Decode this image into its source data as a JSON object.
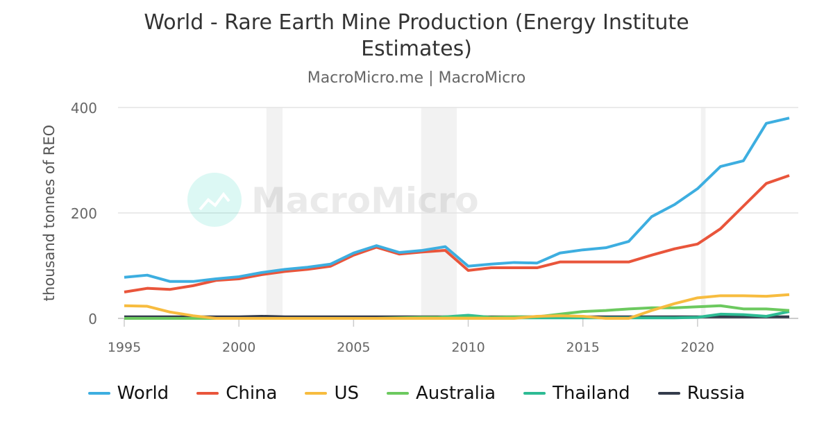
{
  "chart_data": {
    "type": "line",
    "title": "World - Rare Earth Mine Production (Energy Institute Estimates)",
    "subtitle": "MacroMicro.me | MacroMicro",
    "xlabel": "",
    "ylabel": "thousand tonnes of REO",
    "xlim": [
      1995,
      2024
    ],
    "ylim": [
      0,
      400
    ],
    "x_ticks": [
      "1995",
      "2000",
      "2005",
      "2010",
      "2015",
      "2020"
    ],
    "y_ticks": [
      "0",
      "200",
      "400"
    ],
    "grid": true,
    "legend": "bottom",
    "watermark": "MacroMicro",
    "shaded_periods": [
      [
        2001.2,
        2001.9
      ],
      [
        2007.95,
        2009.5
      ],
      [
        2020.15,
        2020.35
      ]
    ],
    "x": [
      1995,
      1996,
      1997,
      1998,
      1999,
      2000,
      2001,
      2002,
      2003,
      2004,
      2005,
      2006,
      2007,
      2008,
      2009,
      2010,
      2011,
      2012,
      2013,
      2014,
      2015,
      2016,
      2017,
      2018,
      2019,
      2020,
      2021,
      2022,
      2023,
      2024
    ],
    "series": [
      {
        "name": "World",
        "color": "#3daee0",
        "values": [
          78,
          82,
          70,
          70,
          75,
          79,
          87,
          93,
          97,
          103,
          124,
          138,
          125,
          129,
          136,
          99,
          103,
          106,
          105,
          124,
          130,
          134,
          146,
          193,
          216,
          246,
          288,
          299,
          370,
          380
        ]
      },
      {
        "name": "China",
        "color": "#e9553b",
        "values": [
          50,
          57,
          55,
          62,
          72,
          75,
          83,
          89,
          93,
          99,
          120,
          135,
          122,
          126,
          129,
          91,
          96,
          96,
          96,
          107,
          107,
          107,
          107,
          120,
          132,
          141,
          170,
          213,
          256,
          271
        ]
      },
      {
        "name": "US",
        "color": "#f7bc3f",
        "values": [
          24,
          23,
          12,
          5,
          0,
          0,
          0,
          0,
          0,
          0,
          0,
          0,
          0,
          0,
          0,
          0,
          0,
          0,
          4,
          5,
          4,
          0,
          0,
          15,
          28,
          39,
          43,
          43,
          42,
          45
        ]
      },
      {
        "name": "Australia",
        "color": "#6cc95f",
        "values": [
          0,
          0,
          0,
          0,
          0,
          0,
          0,
          0,
          0,
          0,
          0,
          0,
          1,
          2,
          2,
          2,
          2,
          3,
          3,
          8,
          13,
          15,
          18,
          20,
          20,
          22,
          24,
          18,
          18,
          15
        ]
      },
      {
        "name": "Thailand",
        "color": "#2dbb94",
        "values": [
          0,
          0,
          0,
          0,
          0,
          0,
          0,
          0,
          0,
          0,
          0,
          0,
          0,
          0,
          3,
          6,
          2,
          1,
          1,
          1,
          1,
          1,
          1,
          1,
          1,
          2,
          8,
          7,
          4,
          13
        ]
      },
      {
        "name": "Russia",
        "color": "#333b4b",
        "values": [
          3,
          3,
          3,
          3,
          3,
          3,
          4,
          3,
          3,
          3,
          3,
          3,
          3,
          3,
          3,
          3,
          3,
          3,
          3,
          3,
          3,
          3,
          3,
          3,
          3,
          3,
          3,
          3,
          3,
          3
        ]
      }
    ]
  }
}
